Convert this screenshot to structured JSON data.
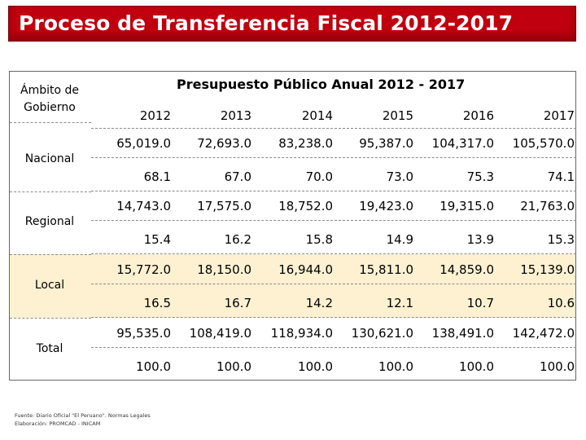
{
  "title": "Proceso de Transferencia Fiscal 2012-2017",
  "ambito_label_line1": "Ámbito de",
  "ambito_label_line2": "Gobierno",
  "budget_header": "Presupuesto Público Anual 2012 - 2017",
  "years": [
    "2012",
    "2013",
    "2014",
    "2015",
    "2016",
    "2017"
  ],
  "rows": [
    {
      "name": "Nacional",
      "amounts": [
        "65,019.0",
        "72,693.0",
        "83,238.0",
        "95,387.0",
        "104,317.0",
        "105,570.0"
      ],
      "percents": [
        "68.1",
        "67.0",
        "70.0",
        "73.0",
        "75.3",
        "74.1"
      ]
    },
    {
      "name": "Regional",
      "amounts": [
        "14,743.0",
        "17,575.0",
        "18,752.0",
        "19,423.0",
        "19,315.0",
        "21,763.0"
      ],
      "percents": [
        "15.4",
        "16.2",
        "15.8",
        "14.9",
        "13.9",
        "15.3"
      ]
    },
    {
      "name": "Local",
      "amounts": [
        "15,772.0",
        "18,150.0",
        "16,944.0",
        "15,811.0",
        "14,859.0",
        "15,139.0"
      ],
      "percents": [
        "16.5",
        "16.7",
        "14.2",
        "12.1",
        "10.7",
        "10.6"
      ]
    },
    {
      "name": "Total",
      "amounts": [
        "95,535.0",
        "108,419.0",
        "118,934.0",
        "130,621.0",
        "138,491.0",
        "142,472.0"
      ],
      "percents": [
        "100.0",
        "100.0",
        "100.0",
        "100.0",
        "100.0",
        "100.0"
      ]
    }
  ],
  "footer_source": "Fuente: Diario Oficial \"El Peruano\". Normas Legales",
  "footer_elab": "Elaboración: PROMCAD - INICAM",
  "colors": {
    "title_bg": "#c0000e",
    "local_band": "#fdf1d2"
  }
}
